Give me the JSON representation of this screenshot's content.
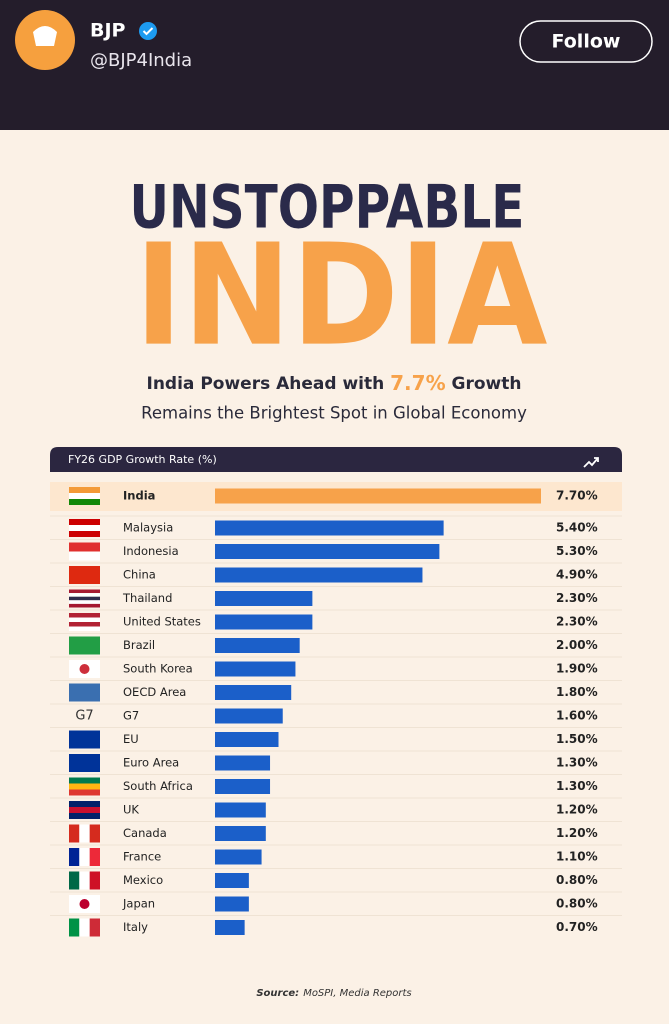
{
  "post_header": {
    "account_name": "BJP",
    "handle": "@BJP4India",
    "follow_button": "Follow"
  },
  "infographic": {
    "headline": "UNSTOPPABLE",
    "headline_big": "INDIA",
    "subtitle_parts": [
      "India Powers Ahead with ",
      "7.7%",
      " Growth"
    ],
    "subtitle_line2": "Remains the Brightest Spot in Global Economy",
    "g7_icon": "G7",
    "source_label": "Source:",
    "source_text": "MoSPI, Media Reports"
  },
  "chart_data": {
    "type": "bar",
    "orientation": "horizontal",
    "title": "FY26 GDP Growth Rate (%)",
    "categories": [
      "India",
      "Malaysia",
      "Indonesia",
      "China",
      "Thailand",
      "United States",
      "Brazil",
      "South Korea",
      "OECD Area",
      "G7",
      "EU",
      "Euro Area",
      "South Africa",
      "UK",
      "Canada",
      "France",
      "Mexico",
      "Japan",
      "Italy"
    ],
    "values": [
      7.7,
      5.4,
      5.3,
      4.9,
      2.3,
      2.3,
      2.0,
      1.9,
      1.8,
      1.6,
      1.5,
      1.3,
      1.3,
      1.2,
      1.2,
      1.1,
      0.8,
      0.8,
      0.7
    ],
    "value_labels": [
      "7.70%",
      "5.40%",
      "5.30%",
      "4.90%",
      "2.30%",
      "2.30%",
      "2.00%",
      "1.90%",
      "1.80%",
      "1.60%",
      "1.50%",
      "1.30%",
      "1.30%",
      "1.20%",
      "1.20%",
      "1.10%",
      "0.80%",
      "0.80%",
      "0.70%"
    ],
    "colors": [
      "#f7a24a",
      "#1b5fc9",
      "#1b5fc9",
      "#1b5fc9",
      "#1b5fc9",
      "#1b5fc9",
      "#1b5fc9",
      "#1b5fc9",
      "#1b5fc9",
      "#1b5fc9",
      "#1b5fc9",
      "#1b5fc9",
      "#1b5fc9",
      "#1b5fc9",
      "#1b5fc9",
      "#1b5fc9",
      "#1b5fc9",
      "#1b5fc9",
      "#1b5fc9"
    ]
  }
}
